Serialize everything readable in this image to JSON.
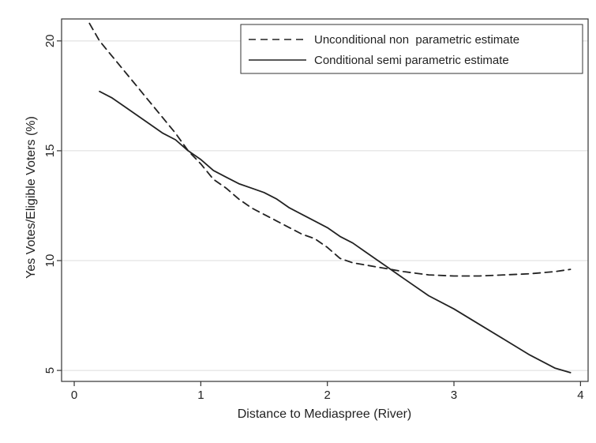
{
  "chart_data": {
    "type": "line",
    "title": "",
    "xlabel": "Distance to Mediaspree (River)",
    "ylabel": "Yes Votes/Eligible Voters (%)",
    "xlim": [
      0,
      4
    ],
    "ylim": [
      5,
      21
    ],
    "x_ticks": [
      0,
      1,
      2,
      3,
      4
    ],
    "y_ticks": [
      5,
      10,
      15,
      20
    ],
    "grid": "horizontal",
    "legend_position": "top-right",
    "series": [
      {
        "name": "Unconditional non  parametric estimate",
        "style": "dashed",
        "color": "#222222",
        "x": [
          0.12,
          0.2,
          0.3,
          0.4,
          0.5,
          0.6,
          0.7,
          0.8,
          0.9,
          1.0,
          1.1,
          1.2,
          1.3,
          1.4,
          1.5,
          1.6,
          1.7,
          1.8,
          1.9,
          2.0,
          2.1,
          2.2,
          2.4,
          2.6,
          2.8,
          3.0,
          3.2,
          3.4,
          3.6,
          3.8,
          3.92
        ],
        "y": [
          20.8,
          20.0,
          19.3,
          18.6,
          17.9,
          17.2,
          16.5,
          15.8,
          15.0,
          14.4,
          13.7,
          13.3,
          12.8,
          12.4,
          12.1,
          11.8,
          11.5,
          11.2,
          11.0,
          10.6,
          10.1,
          9.9,
          9.7,
          9.5,
          9.35,
          9.3,
          9.3,
          9.35,
          9.4,
          9.5,
          9.6
        ]
      },
      {
        "name": "Conditional semi parametric estimate",
        "style": "solid",
        "color": "#222222",
        "x": [
          0.2,
          0.3,
          0.4,
          0.5,
          0.6,
          0.7,
          0.8,
          0.9,
          1.0,
          1.1,
          1.2,
          1.3,
          1.4,
          1.5,
          1.6,
          1.7,
          1.8,
          1.9,
          2.0,
          2.1,
          2.2,
          2.3,
          2.4,
          2.5,
          2.6,
          2.8,
          3.0,
          3.2,
          3.4,
          3.6,
          3.8,
          3.92
        ],
        "y": [
          17.7,
          17.4,
          17.0,
          16.6,
          16.2,
          15.8,
          15.5,
          15.0,
          14.6,
          14.1,
          13.8,
          13.5,
          13.3,
          13.1,
          12.8,
          12.4,
          12.1,
          11.8,
          11.5,
          11.1,
          10.8,
          10.4,
          10.0,
          9.6,
          9.2,
          8.4,
          7.8,
          7.1,
          6.4,
          5.7,
          5.1,
          4.9
        ]
      }
    ]
  }
}
